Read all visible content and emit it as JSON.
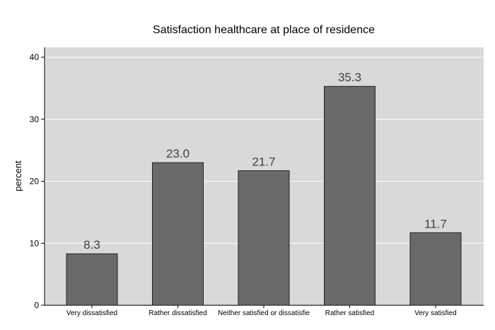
{
  "chart_data": {
    "type": "bar",
    "title": "Satisfaction healthcare at place of residence",
    "xlabel": "",
    "ylabel": "percent",
    "categories": [
      "Very dissatisfied",
      "Rather dissatisfied",
      "Neither satisfied or dissatisfie",
      "Rather satisfied",
      "Very satisfied"
    ],
    "values": [
      8.3,
      23.0,
      21.7,
      35.3,
      11.7
    ],
    "value_labels": [
      "8.3",
      "23.0",
      "21.7",
      "35.3",
      "11.7"
    ],
    "ylim": [
      0,
      40
    ],
    "yticks": [
      0,
      10,
      20,
      30,
      40
    ],
    "ytick_labels": [
      "0",
      "10",
      "20",
      "30",
      "40"
    ],
    "grid": true,
    "legend": "none",
    "colors": {
      "plot_background": "#d9d9d9",
      "bar_fill": "#6a6a6a",
      "bar_stroke": "#1f1f1f",
      "gridline": "#ffffff",
      "value_label": "#404040"
    }
  }
}
